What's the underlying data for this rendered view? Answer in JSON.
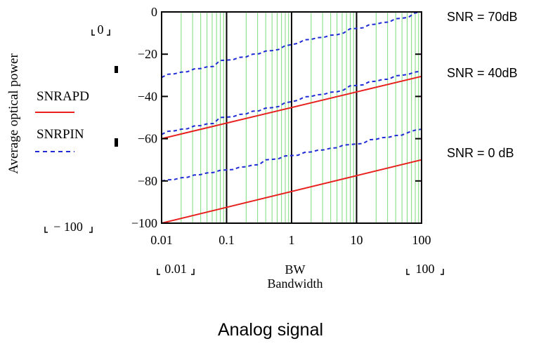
{
  "chart_data": {
    "type": "line",
    "title": "Analog signal",
    "xlabel": "Bandwidth",
    "xvar": "BW",
    "ylabel": "Average optical power",
    "x_scale": "log",
    "xlim": [
      0.01,
      100
    ],
    "ylim": [
      -100,
      0
    ],
    "x_ticks": [
      "0.01",
      "0.1",
      "1",
      "10",
      "100"
    ],
    "y_ticks": [
      "0",
      "−20",
      "−40",
      "−60",
      "−80",
      "−100"
    ],
    "x_range_labels": [
      "0.01",
      "100"
    ],
    "y_range_labels": [
      "0",
      "− 100"
    ],
    "legend": [
      {
        "name": "SNRAPD",
        "color": "#e8201e",
        "style": "solid"
      },
      {
        "name": "SNRPIN",
        "color": "#1e2bd6",
        "style": "dashed"
      }
    ],
    "annotations": [
      "SNR = 70dB",
      "SNR = 40dB",
      "SNR = 0 dB"
    ],
    "series": [
      {
        "name": "SNRAPD",
        "group": "SNR = 40dB",
        "x": [
          0.01,
          100
        ],
        "y": [
          -60,
          -30.5
        ]
      },
      {
        "name": "SNRAPD",
        "group": "SNR = 0 dB",
        "x": [
          0.01,
          100
        ],
        "y": [
          -100,
          -70
        ]
      },
      {
        "name": "SNRPIN",
        "group": "SNR = 70dB",
        "x": [
          0.01,
          0.0125,
          0.0158,
          0.02,
          0.025,
          0.0316,
          0.04,
          0.05,
          0.063,
          0.079,
          0.1,
          0.126,
          0.158,
          0.2,
          0.25,
          0.316,
          0.4,
          0.5,
          0.63,
          0.79,
          1,
          1.26,
          1.58,
          2,
          2.5,
          3.16,
          4,
          5,
          6.3,
          7.9,
          10,
          12.6,
          15.8,
          20,
          25,
          31.6,
          40,
          50,
          63,
          79,
          100
        ],
        "y": [
          -31,
          -29.5,
          -29.3,
          -28.5,
          -28.3,
          -27,
          -26.8,
          -26,
          -25.8,
          -23,
          -22.8,
          -22.6,
          -21.5,
          -21.3,
          -20,
          -19.8,
          -18.5,
          -18.3,
          -17.8,
          -16,
          -15.5,
          -14.8,
          -13.2,
          -13,
          -12.2,
          -12,
          -11,
          -10.8,
          -10,
          -8,
          -7.8,
          -7.5,
          -6,
          -5.8,
          -5,
          -4.8,
          -3.2,
          -3,
          -2.5,
          -0.5,
          0
        ]
      },
      {
        "name": "SNRPIN",
        "group": "SNR = 40dB",
        "x": [
          0.01,
          0.0125,
          0.0158,
          0.02,
          0.025,
          0.0316,
          0.04,
          0.05,
          0.063,
          0.079,
          0.1,
          0.126,
          0.158,
          0.2,
          0.25,
          0.316,
          0.4,
          0.5,
          0.63,
          0.79,
          1,
          1.26,
          1.58,
          2,
          2.5,
          3.16,
          4,
          5,
          6.3,
          7.9,
          10,
          12.6,
          15.8,
          20,
          25,
          31.6,
          40,
          50,
          63,
          79,
          100
        ],
        "y": [
          -58,
          -56.5,
          -56.3,
          -55.5,
          -55.3,
          -54,
          -53.8,
          -53,
          -52.8,
          -50,
          -49.8,
          -49.6,
          -48.5,
          -48.3,
          -47,
          -46.8,
          -45.5,
          -45.3,
          -44.8,
          -43,
          -42.5,
          -41.8,
          -40.2,
          -40,
          -39.2,
          -39,
          -38,
          -37.8,
          -37,
          -35,
          -34.8,
          -34.5,
          -33,
          -32.8,
          -32,
          -31.8,
          -30.2,
          -30,
          -29.5,
          -28.5,
          -28
        ]
      },
      {
        "name": "SNRPIN",
        "group": "SNR = 0 dB",
        "x": [
          0.01,
          0.0125,
          0.0158,
          0.02,
          0.025,
          0.0316,
          0.04,
          0.05,
          0.063,
          0.079,
          0.1,
          0.126,
          0.158,
          0.2,
          0.25,
          0.316,
          0.4,
          0.5,
          0.63,
          0.79,
          1,
          1.26,
          1.58,
          2,
          2.5,
          3.16,
          4,
          5,
          6.3,
          7.9,
          10,
          12.6,
          15.8,
          20,
          25,
          31.6,
          40,
          50,
          63,
          79,
          100
        ],
        "y": [
          -80,
          -79.5,
          -79.3,
          -78.5,
          -78.3,
          -77.2,
          -77,
          -76.2,
          -76,
          -75,
          -74.8,
          -74.6,
          -73.5,
          -73.3,
          -72.5,
          -72.3,
          -70,
          -69.8,
          -69.5,
          -68.2,
          -68,
          -67.8,
          -66.5,
          -66.3,
          -65.5,
          -65.3,
          -64.5,
          -64.3,
          -63,
          -62.8,
          -62.5,
          -62.3,
          -60.5,
          -60.3,
          -59.5,
          -59.3,
          -58.5,
          -58.3,
          -57,
          -56,
          -55.5
        ]
      }
    ]
  }
}
